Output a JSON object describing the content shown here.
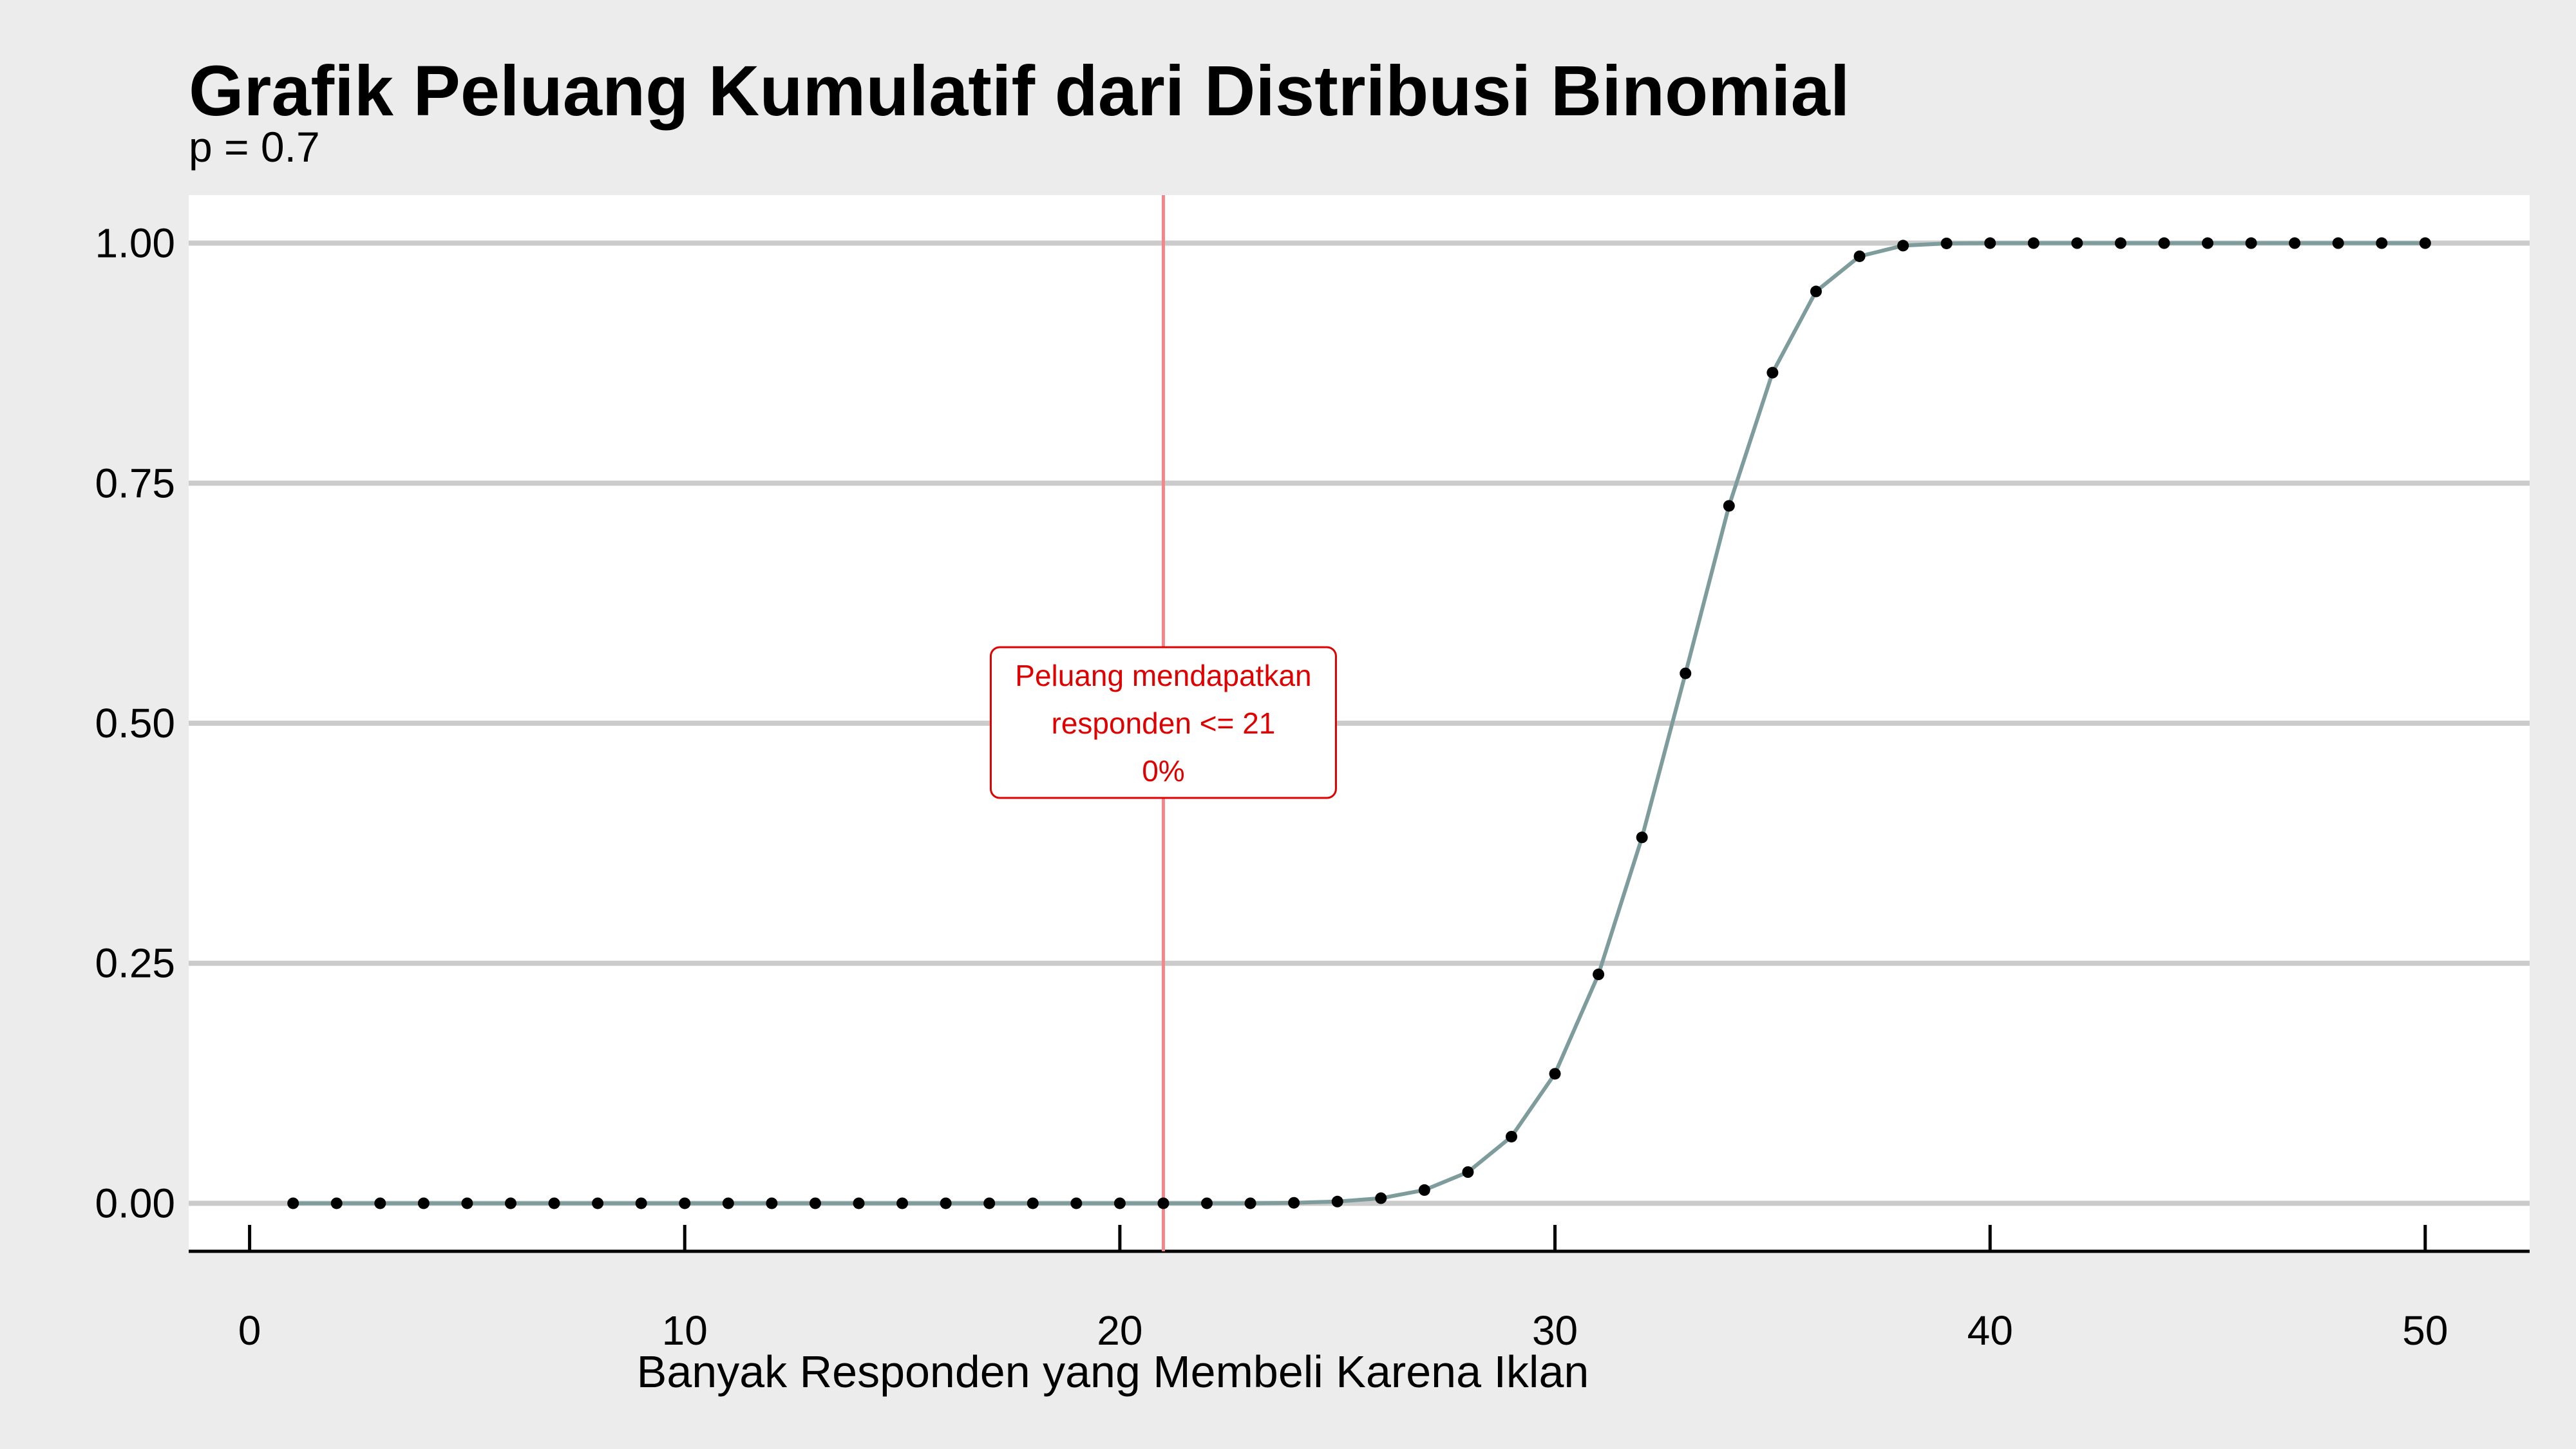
{
  "chart_data": {
    "type": "line",
    "title": "Grafik Peluang Kumulatif dari Distribusi Binomial",
    "subtitle": "p = 0.7",
    "xlabel": "Banyak Responden yang Membeli Karena Iklan",
    "ylabel": "",
    "xlim": [
      -1.4,
      52.4
    ],
    "ylim": [
      -0.05,
      1.05
    ],
    "x_ticks": [
      0,
      10,
      20,
      30,
      40,
      50
    ],
    "x_tick_labels": [
      "0",
      "10",
      "20",
      "30",
      "40",
      "50"
    ],
    "y_ticks": [
      0,
      0.25,
      0.5,
      0.75,
      1.0
    ],
    "y_tick_labels": [
      "0.00",
      "0.25",
      "0.50",
      "0.75",
      "1.00"
    ],
    "grid": "horizontal major",
    "x": [
      1,
      2,
      3,
      4,
      5,
      6,
      7,
      8,
      9,
      10,
      11,
      12,
      13,
      14,
      15,
      16,
      17,
      18,
      19,
      20,
      21,
      22,
      23,
      24,
      25,
      26,
      27,
      28,
      29,
      30,
      31,
      32,
      33,
      34,
      35,
      36,
      37,
      38,
      39,
      40,
      41,
      42,
      43,
      44,
      45,
      46,
      47,
      48,
      49,
      50
    ],
    "values": [
      0,
      0,
      0,
      0,
      0,
      0,
      0,
      0,
      0,
      0,
      0,
      0,
      0,
      0,
      0,
      0,
      0,
      0,
      0,
      0,
      0,
      0,
      0,
      0.0005,
      0.0018,
      0.0053,
      0.0138,
      0.0325,
      0.0694,
      0.1349,
      0.2384,
      0.3811,
      0.5519,
      0.7264,
      0.8651,
      0.9497,
      0.9863,
      0.9974,
      0.9997,
      1,
      1,
      1,
      1,
      1,
      1,
      1,
      1,
      1,
      1,
      1
    ],
    "line_color": "#7f9c9c",
    "point_color": "#000000",
    "reference_line": {
      "x": 21,
      "color": "#f4868a"
    },
    "annotation": {
      "lines": [
        "Peluang mendapatkan",
        "responden <= 21",
        "0%"
      ],
      "x": 21,
      "y": 0.5,
      "color": "#e00000"
    }
  }
}
